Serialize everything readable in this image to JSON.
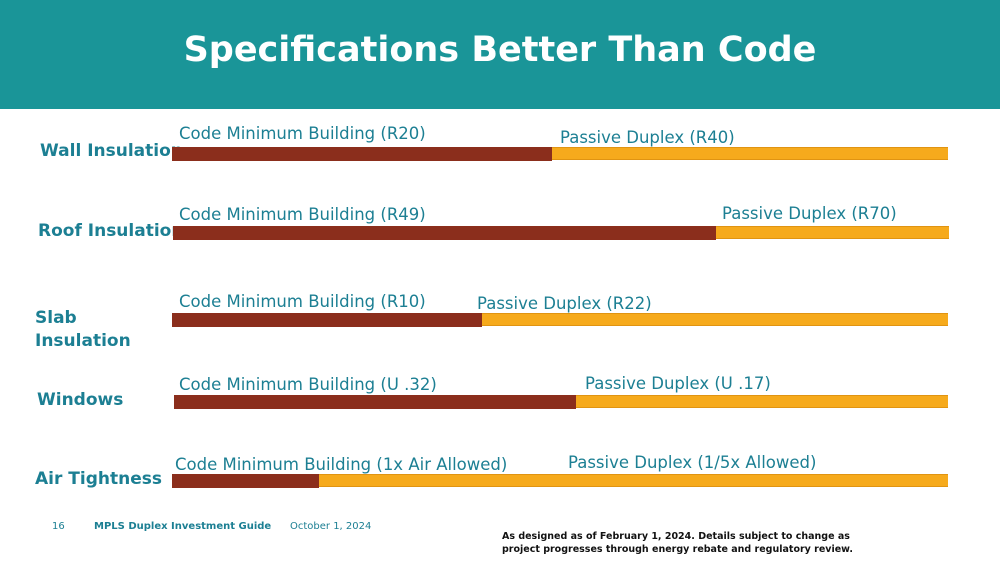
{
  "slide": {
    "title": "Specifications Better Than Code"
  },
  "rows": [
    {
      "label": "Wall Insulation",
      "code_caption": "Code Minimum Building (R20)",
      "passive_caption": "Passive Duplex (R40)",
      "code_fraction": 0.49
    },
    {
      "label": "Roof Insulation",
      "code_caption": "Code Minimum Building (R49)",
      "passive_caption": "Passive Duplex (R70)",
      "code_fraction": 0.7
    },
    {
      "label": "Slab Insulation",
      "code_caption": "Code Minimum Building (R10)",
      "passive_caption": "Passive Duplex (R22)",
      "code_fraction": 0.4
    },
    {
      "label": "Windows",
      "code_caption": "Code Minimum Building (U .32)",
      "passive_caption": "Passive Duplex (U .17)",
      "code_fraction": 0.52
    },
    {
      "label": "Air Tightness",
      "code_caption": "Code Minimum Building (1x Air Allowed)",
      "passive_caption": "Passive Duplex (1/5x Allowed)",
      "code_fraction": 0.19
    }
  ],
  "colors": {
    "header": "#1a9598",
    "code_bar": "#8b2e1c",
    "passive_bar": "#f6aa1c",
    "label_text": "#1c7f93"
  },
  "footer": {
    "page_number": "16",
    "guide_title": "MPLS Duplex Investment Guide",
    "date": "October 1, 2024",
    "disclaimer": "As designed as of February 1, 2024. Details subject to change as project progresses through energy rebate and regulatory review."
  }
}
